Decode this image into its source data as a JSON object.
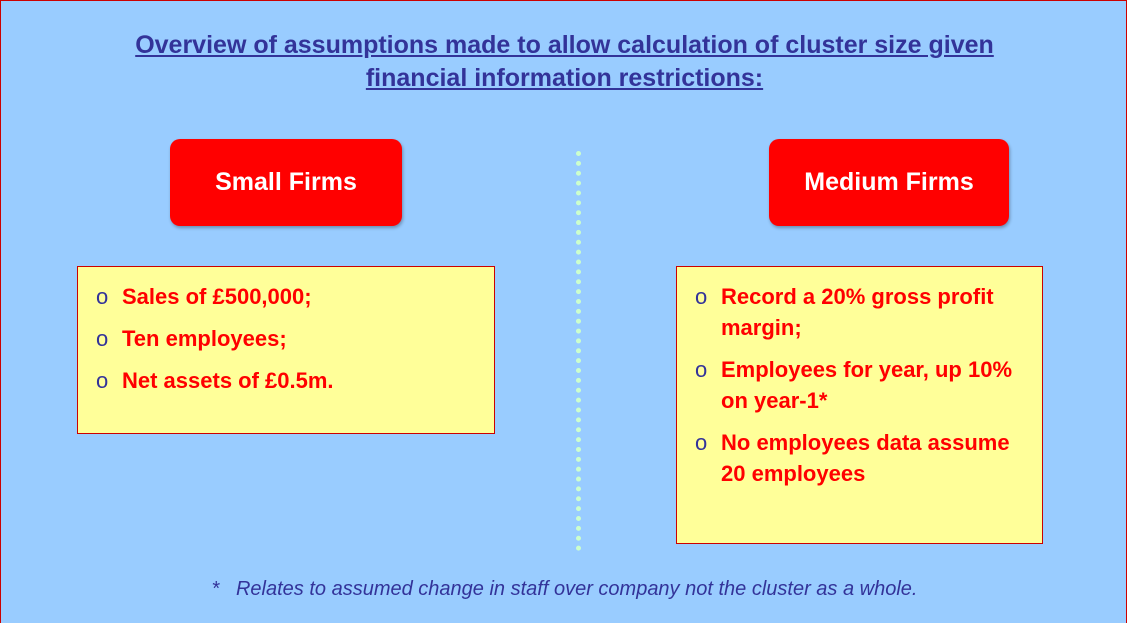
{
  "title": [
    "Overview of assumptions made to allow calculation of cluster size given",
    "financial information restrictions:"
  ],
  "left": {
    "label": "Small Firms",
    "items": [
      "Sales of £500,000;",
      "Ten employees;",
      "Net assets of £0.5m."
    ]
  },
  "right": {
    "label": "Medium Firms",
    "items": [
      "Record a 20% gross profit margin;",
      "Employees for year, up 10% on year-1*",
      "No employees data assume 20 employees"
    ]
  },
  "footnote_mark": "*",
  "footnote": "Relates to assumed change in staff over company not the cluster as a whole."
}
